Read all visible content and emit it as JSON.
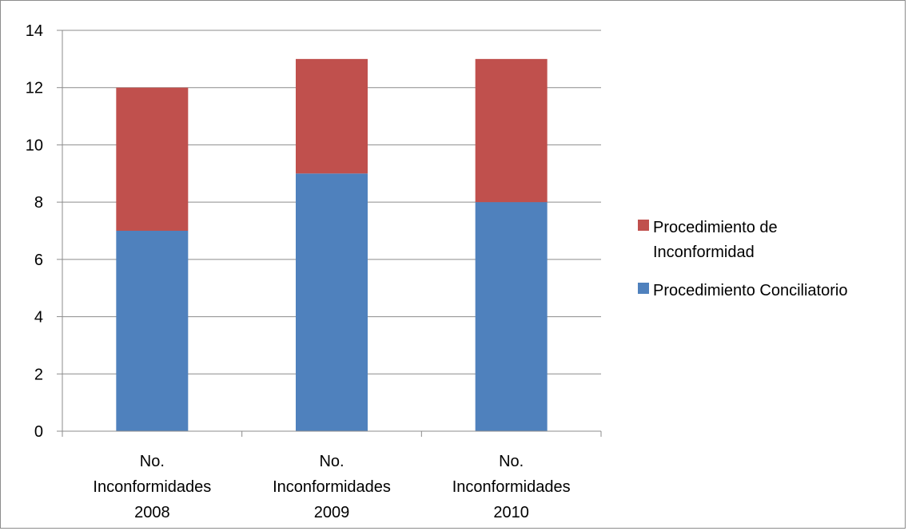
{
  "chart_data": {
    "type": "bar",
    "stacked": true,
    "title": "",
    "xlabel": "",
    "ylabel": "",
    "ylim": [
      0,
      14
    ],
    "yticks": [
      0,
      2,
      4,
      6,
      8,
      10,
      12,
      14
    ],
    "grid": true,
    "legend_position": "right",
    "categories": [
      [
        "No.",
        "Inconformidades",
        "2008"
      ],
      [
        "No.",
        "Inconformidades",
        "2009"
      ],
      [
        "No.",
        "Inconformidades",
        "2010"
      ]
    ],
    "series": [
      {
        "name": "Procedimiento Conciliatorio",
        "color": "#4f81bd",
        "values": [
          7,
          9,
          8
        ]
      },
      {
        "name": "Procedimiento de Inconformidad",
        "color": "#c0504d",
        "values": [
          5,
          4,
          5
        ]
      }
    ],
    "legend": [
      {
        "lines": [
          "Procedimiento de",
          "Inconformidad"
        ],
        "color": "#c0504d"
      },
      {
        "lines": [
          "Procedimiento Conciliatorio"
        ],
        "color": "#4f81bd"
      }
    ]
  }
}
